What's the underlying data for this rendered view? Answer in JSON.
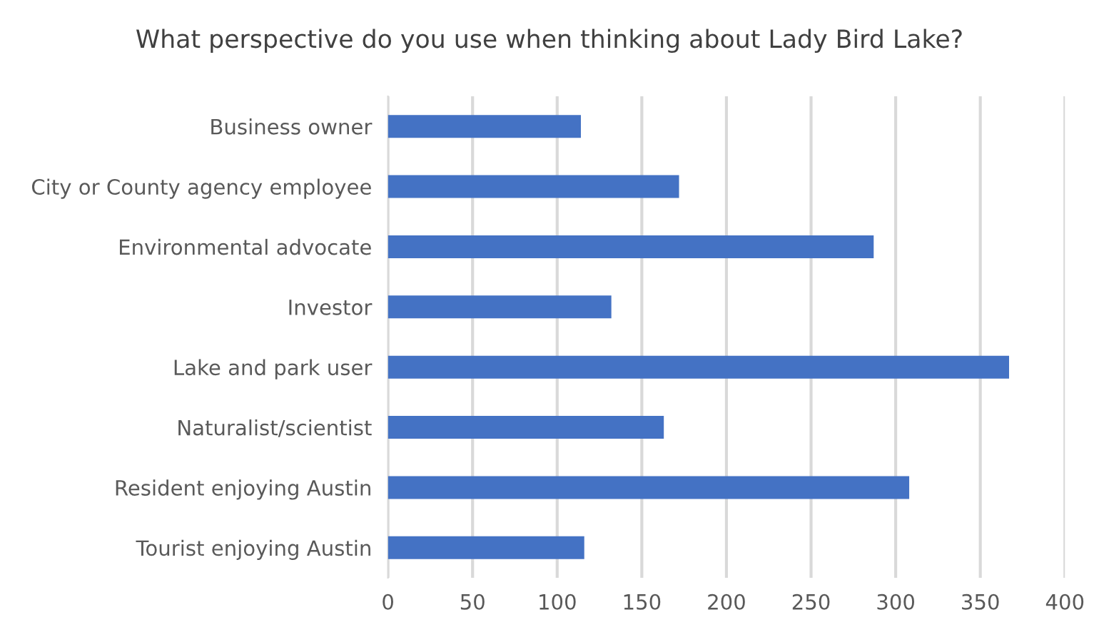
{
  "chart_data": {
    "type": "bar",
    "orientation": "horizontal",
    "title": "What perspective do you use when thinking about Lady Bird Lake?",
    "categories": [
      "Business owner",
      "City or County agency employee",
      "Environmental advocate",
      "Investor",
      "Lake and park user",
      "Naturalist/scientist",
      "Resident enjoying Austin",
      "Tourist enjoying Austin"
    ],
    "values": [
      114,
      172,
      287,
      132,
      367,
      163,
      308,
      116
    ],
    "color": "#4472c4",
    "xlim": [
      0,
      400
    ],
    "xticks": [
      0,
      50,
      100,
      150,
      200,
      250,
      300,
      350,
      400
    ],
    "grid": "x"
  }
}
